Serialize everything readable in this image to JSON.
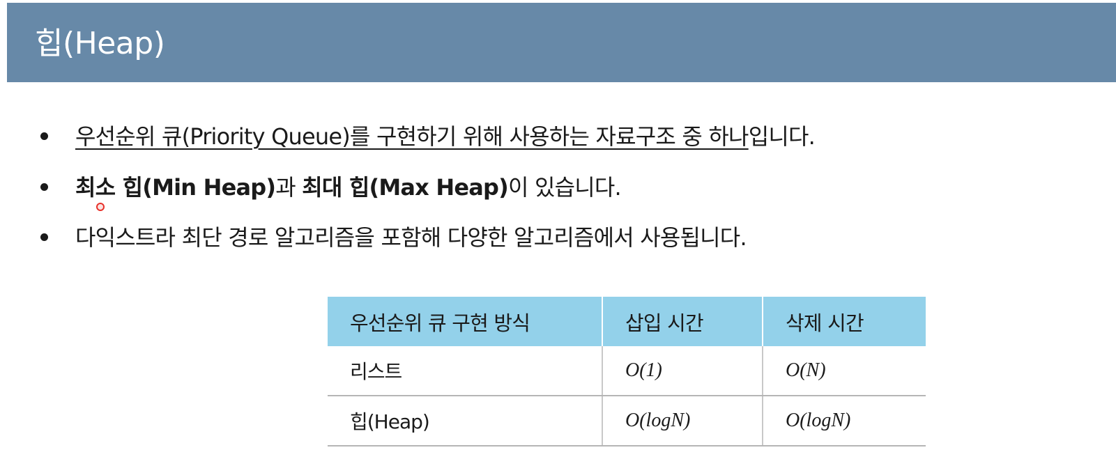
{
  "header": {
    "title": "힙(Heap)"
  },
  "bullets": [
    {
      "text": "우선순위 큐(Priority Queue)를 구현하기 위해 사용하는 자료구조 중 하나",
      "suffix": "입니다."
    },
    {
      "bold_1": "최소 힙(Min Heap)",
      "text_1": "과 ",
      "bold_2": "최대 힙(Max Heap)",
      "text_2": "이 있습니다."
    },
    {
      "text": "다익스트라 최단 경로 알고리즘을 포함해 다양한 알고리즘에서 사용됩니다."
    }
  ],
  "table": {
    "headers": [
      "우선순위 큐 구현 방식",
      "삽입 시간",
      "삭제 시간"
    ],
    "rows": [
      [
        "리스트",
        "O(1)",
        "O(N)"
      ],
      [
        "힙(Heap)",
        "O(logN)",
        "O(logN)"
      ]
    ]
  },
  "colors": {
    "title_bar": "#6789a8",
    "table_header": "#93d1ea",
    "cursor": "#e8312a"
  }
}
